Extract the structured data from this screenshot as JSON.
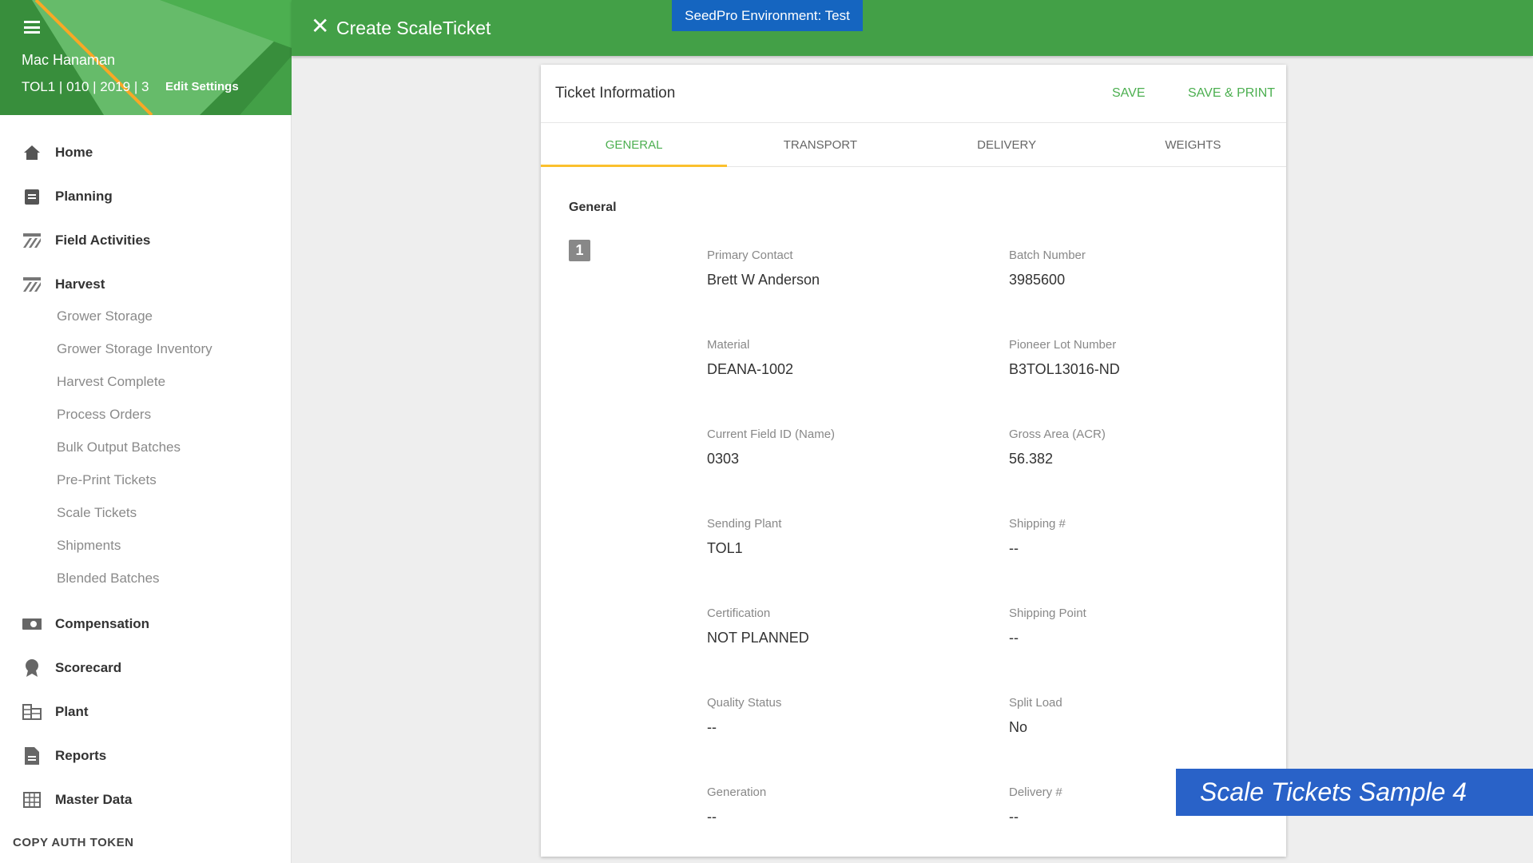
{
  "app": {
    "title": "Create ScaleTicket",
    "environment": "SeedPro Environment: Test",
    "accent": "#43a047",
    "env_color": "#1565c0"
  },
  "user": {
    "name": "Mac Hanaman",
    "context": "TOL1 | 010 | 2019 | 3",
    "edit_settings": "Edit Settings"
  },
  "sidebar": {
    "items": [
      {
        "label": "Home",
        "icon": "home-icon"
      },
      {
        "label": "Planning",
        "icon": "clipboard-icon"
      },
      {
        "label": "Field Activities",
        "icon": "field-icon"
      },
      {
        "label": "Harvest",
        "icon": "field-icon"
      },
      {
        "label": "Compensation",
        "icon": "money-icon"
      },
      {
        "label": "Scorecard",
        "icon": "award-icon"
      },
      {
        "label": "Plant",
        "icon": "building-icon"
      },
      {
        "label": "Reports",
        "icon": "document-icon"
      },
      {
        "label": "Master Data",
        "icon": "grid-icon"
      }
    ],
    "harvest_sub": [
      "Grower Storage",
      "Grower Storage Inventory",
      "Harvest Complete",
      "Process Orders",
      "Bulk Output Batches",
      "Pre-Print Tickets",
      "Scale Tickets",
      "Shipments",
      "Blended Batches"
    ],
    "copy_token": "COPY AUTH TOKEN"
  },
  "card": {
    "title": "Ticket Information",
    "save": "SAVE",
    "save_print": "SAVE & PRINT",
    "tabs": [
      "GENERAL",
      "TRANSPORT",
      "DELIVERY",
      "WEIGHTS"
    ],
    "active_tab": "GENERAL",
    "section": "General",
    "step": "1",
    "fields": [
      [
        {
          "label": "Primary Contact",
          "value": "Brett W Anderson"
        },
        {
          "label": "Batch Number",
          "value": "3985600"
        }
      ],
      [
        {
          "label": "Material",
          "value": "DEANA-1002"
        },
        {
          "label": "Pioneer Lot Number",
          "value": "B3TOL13016-ND"
        }
      ],
      [
        {
          "label": "Current Field ID (Name)",
          "value": "0303"
        },
        {
          "label": "Gross Area (ACR)",
          "value": "56.382"
        }
      ],
      [
        {
          "label": "Sending Plant",
          "value": "TOL1"
        },
        {
          "label": "Shipping #",
          "value": "--"
        }
      ],
      [
        {
          "label": "Certification",
          "value": "NOT PLANNED"
        },
        {
          "label": "Shipping Point",
          "value": "--"
        }
      ],
      [
        {
          "label": "Quality Status",
          "value": "--"
        },
        {
          "label": "Split Load",
          "value": "No"
        }
      ],
      [
        {
          "label": "Generation",
          "value": "--"
        },
        {
          "label": "Delivery #",
          "value": "--"
        }
      ]
    ]
  },
  "overlay": {
    "caption": "Scale Tickets Sample 4"
  }
}
